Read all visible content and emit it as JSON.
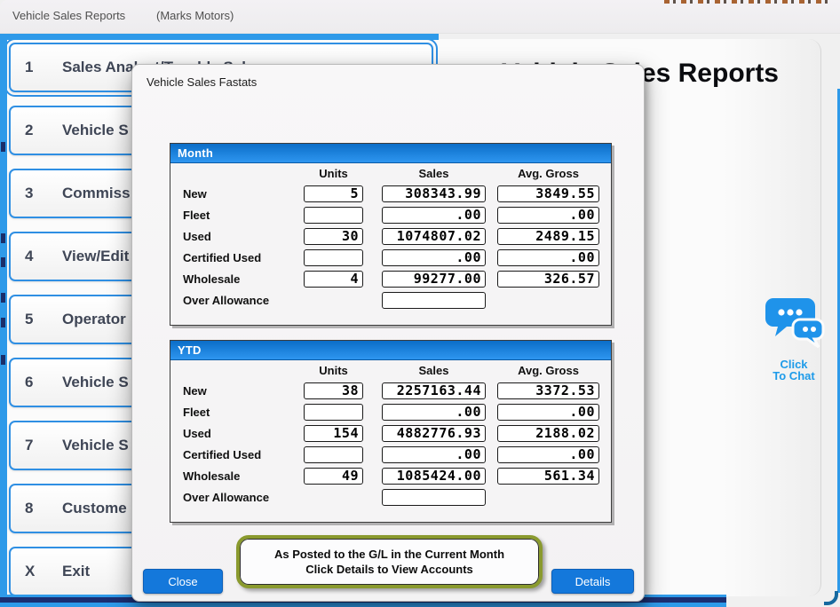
{
  "titlebar": {
    "title": "Vehicle Sales Reports",
    "company": "(Marks Motors)"
  },
  "heading": "Vehicle Sales Reports",
  "menu": {
    "items": [
      {
        "key": "1",
        "label": "Sales Analyst/Taxable Sales",
        "selected": true
      },
      {
        "key": "2",
        "label": "Vehicle S"
      },
      {
        "key": "3",
        "label": "Commiss"
      },
      {
        "key": "4",
        "label": "View/Edit"
      },
      {
        "key": "5",
        "label": "Operator"
      },
      {
        "key": "6",
        "label": "Vehicle S"
      },
      {
        "key": "7",
        "label": "Vehicle S"
      },
      {
        "key": "8",
        "label": "Custome"
      },
      {
        "key": "X",
        "label": "Exit"
      }
    ]
  },
  "dialog": {
    "title": "Vehicle Sales Fastats",
    "columns": [
      "Units",
      "Sales",
      "Avg. Gross"
    ],
    "sections": [
      {
        "title": "Month",
        "rows": [
          {
            "label": "New",
            "units": "5",
            "sales": "308343.99",
            "avg_gross": "3849.55"
          },
          {
            "label": "Fleet",
            "units": "",
            "sales": ".00",
            "avg_gross": ".00"
          },
          {
            "label": "Used",
            "units": "30",
            "sales": "1074807.02",
            "avg_gross": "2489.15"
          },
          {
            "label": "Certified Used",
            "units": "",
            "sales": ".00",
            "avg_gross": ".00"
          },
          {
            "label": "Wholesale",
            "units": "4",
            "sales": "99277.00",
            "avg_gross": "326.57"
          },
          {
            "label": "Over Allowance",
            "units": null,
            "sales": "",
            "avg_gross": null
          }
        ]
      },
      {
        "title": "YTD",
        "rows": [
          {
            "label": "New",
            "units": "38",
            "sales": "2257163.44",
            "avg_gross": "3372.53"
          },
          {
            "label": "Fleet",
            "units": "",
            "sales": ".00",
            "avg_gross": ".00"
          },
          {
            "label": "Used",
            "units": "154",
            "sales": "4882776.93",
            "avg_gross": "2188.02"
          },
          {
            "label": "Certified Used",
            "units": "",
            "sales": ".00",
            "avg_gross": ".00"
          },
          {
            "label": "Wholesale",
            "units": "49",
            "sales": "1085424.00",
            "avg_gross": "561.34"
          },
          {
            "label": "Over Allowance",
            "units": null,
            "sales": "",
            "avg_gross": null
          }
        ]
      }
    ],
    "note_lines": [
      "As Posted to the G/L in the Current Month",
      "Click Details to View Accounts"
    ],
    "close_label": "Close",
    "details_label": "Details"
  },
  "chat": {
    "label_lines": [
      "Click",
      "To Chat"
    ]
  },
  "colors": {
    "accent_blue": "#2e9ae9",
    "button_blue": "#1478db",
    "group_header_top": "#0b6dc7",
    "group_header_bottom": "#2e96f0",
    "note_border": "#8a9a2e",
    "frame_navy": "#1b2f72"
  }
}
